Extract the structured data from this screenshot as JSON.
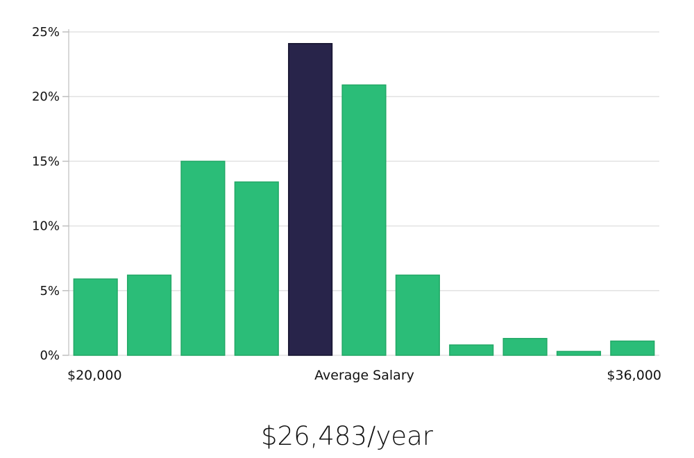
{
  "chart_data": {
    "type": "bar",
    "title": "",
    "xlabel": "Average Salary",
    "ylabel": "",
    "x_start_label": "$20,000",
    "x_end_label": "$36,000",
    "ylim": [
      0,
      25
    ],
    "yticks": [
      "0%",
      "5%",
      "10%",
      "15%",
      "20%",
      "25%"
    ],
    "values": [
      5.9,
      6.2,
      15.0,
      13.4,
      24.1,
      20.9,
      6.2,
      0.8,
      1.3,
      0.3,
      1.1
    ],
    "highlight_index": 4,
    "colors": {
      "bar": "#2bbd78",
      "highlight": "#28244a",
      "grid": "#e2e2e2",
      "axis": "#bfbfbf"
    }
  },
  "average_salary": "$26,483/year"
}
